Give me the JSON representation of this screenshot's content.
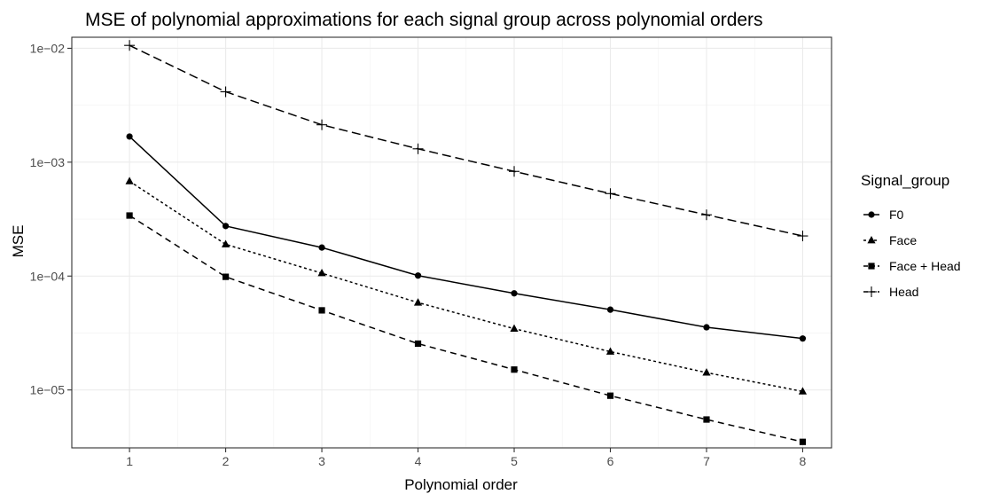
{
  "chart_data": {
    "type": "line",
    "title": "MSE of polynomial approximations for each signal group across polynomial orders",
    "xlabel": "Polynomial order",
    "ylabel": "MSE",
    "x": [
      1,
      2,
      3,
      4,
      5,
      6,
      7,
      8
    ],
    "x_tick_labels": [
      "1",
      "2",
      "3",
      "4",
      "5",
      "6",
      "7",
      "8"
    ],
    "y_scale": "log10",
    "ylim": [
      3.1e-06,
      0.0125
    ],
    "y_ticks": [
      0.01,
      0.001,
      0.0001,
      1e-05
    ],
    "y_tick_labels": [
      "1e−02",
      "1e−03",
      "1e−04",
      "1e−05"
    ],
    "grid": true,
    "legend_position": "right",
    "legend_title": "Signal_group",
    "series": [
      {
        "name": "F0",
        "marker": "circle",
        "linetype": "solid",
        "values": [
          0.00168,
          0.000275,
          0.000178,
          0.000101,
          7.05e-05,
          5.07e-05,
          3.55e-05,
          2.83e-05
        ]
      },
      {
        "name": "Face",
        "marker": "triangle",
        "linetype": "dotted",
        "values": [
          0.00068,
          0.00019,
          0.000106,
          5.85e-05,
          3.45e-05,
          2.17e-05,
          1.42e-05,
          9.7e-06
        ]
      },
      {
        "name": "Face + Head",
        "marker": "square",
        "linetype": "dashed",
        "values": [
          0.00034,
          9.85e-05,
          5e-05,
          2.55e-05,
          1.51e-05,
          8.9e-06,
          5.5e-06,
          3.5e-06
        ]
      },
      {
        "name": "Head",
        "marker": "plus",
        "linetype": "longdash",
        "values": [
          0.0106,
          0.00415,
          0.00213,
          0.00131,
          0.00083,
          0.00053,
          0.000345,
          0.000225
        ]
      }
    ]
  }
}
